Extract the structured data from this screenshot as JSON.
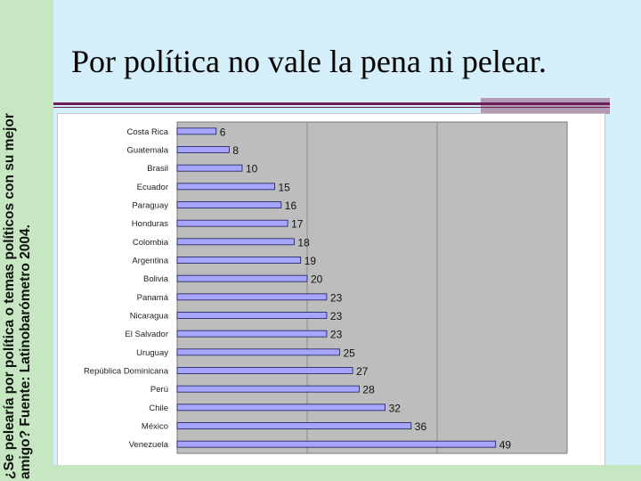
{
  "slide": {
    "title": "Por política no vale la pena ni pelear.",
    "caption_line1": "¿Se pelearía por política o temas políticos con su mejor",
    "caption_line2": "amigo?  Fuente: Latinobarómetro 2004."
  },
  "colors": {
    "background": "#d4eefa",
    "left_bar": "#c6e7c2",
    "rule": "#6b1e5c",
    "accent_box": "#b29ab3",
    "plot_area": "#bdbdbd",
    "bar_fill": "#a6a6ff",
    "bar_stroke": "#1a1a5a"
  },
  "chart_data": {
    "type": "bar",
    "orientation": "horizontal",
    "categories": [
      "Costa Rica",
      "Guatemala",
      "Brasil",
      "Ecuador",
      "Paraguay",
      "Honduras",
      "Colombia",
      "Argentina",
      "Bolivia",
      "Panamá",
      "Nicaragua",
      "El Salvador",
      "Uruguay",
      "República Dominicana",
      "Perú",
      "Chile",
      "México",
      "Venezuela"
    ],
    "values": [
      6,
      8,
      10,
      15,
      16,
      17,
      18,
      19,
      20,
      23,
      23,
      23,
      25,
      27,
      28,
      32,
      36,
      49
    ],
    "data_labels": [
      "6",
      "8",
      "10",
      "15",
      "16",
      "17",
      "18",
      "19",
      "20",
      "23",
      "23",
      "23",
      "25",
      "27",
      "28",
      "32",
      "36",
      "49"
    ],
    "xlim": [
      0,
      60
    ],
    "grid": true,
    "legend": "none"
  }
}
